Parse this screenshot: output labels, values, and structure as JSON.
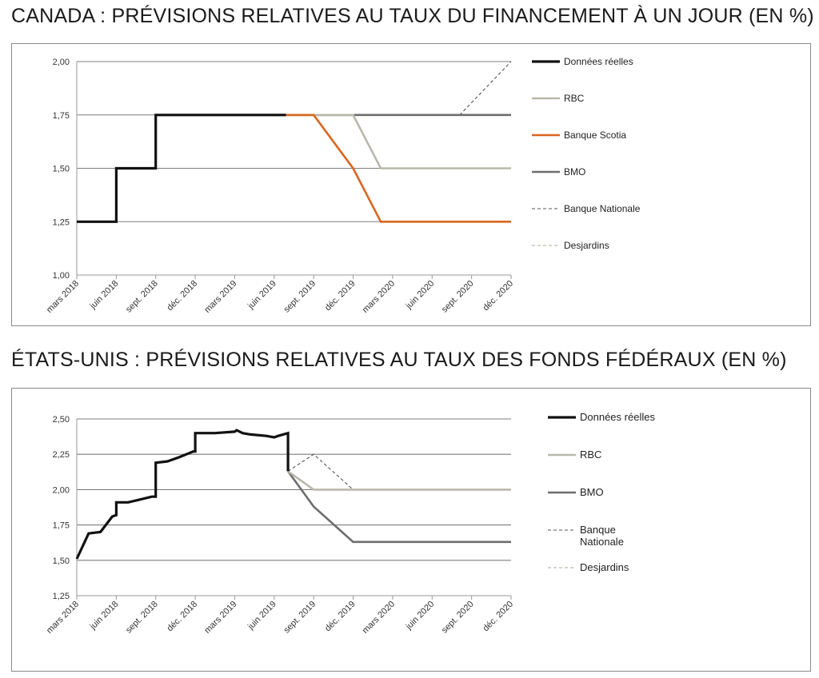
{
  "charts": [
    {
      "title": "CANADA : PRÉVISIONS RELATIVES AU TAUX DU FINANCEMENT À UN JOUR (EN %)"
    },
    {
      "title": "ÉTATS-UNIS : PRÉVISIONS RELATIVES AU TAUX DES FONDS FÉDÉRAUX (EN %)"
    }
  ],
  "colors": {
    "actual": "#111111",
    "rbc": "#b9b8ab",
    "scotia": "#d9661f",
    "bmo": "#6d6c6e",
    "nationale": "#555555",
    "desjardins": "#a8a89a",
    "grid": "#7d7d7d"
  },
  "chart_data": [
    {
      "type": "line",
      "title": "CANADA : PRÉVISIONS RELATIVES AU TAUX DU FINANCEMENT À UN JOUR (EN %)",
      "x_tick_labels": [
        "mars 2018",
        "juin 2018",
        "sept. 2018",
        "déc. 2018",
        "mars 2019",
        "juin 2019",
        "sept. 2019",
        "déc. 2019",
        "mars 2020",
        "juin 2020",
        "sept. 2020",
        "déc. 2020"
      ],
      "ylim": [
        1.0,
        2.0
      ],
      "y_ticks": [
        "1,00",
        "1,25",
        "1,50",
        "1,75",
        "2,00"
      ],
      "y_tick_values": [
        1.0,
        1.25,
        1.5,
        1.75,
        2.0
      ],
      "grid": true,
      "legend_position": "right",
      "legend": [
        {
          "name": "Données réelles",
          "key": "actual",
          "style": "solid-thick"
        },
        {
          "name": "RBC",
          "key": "rbc",
          "style": "solid"
        },
        {
          "name": "Banque Scotia",
          "key": "scotia",
          "style": "solid"
        },
        {
          "name": "BMO",
          "key": "bmo",
          "style": "solid"
        },
        {
          "name": "Banque Nationale",
          "key": "nationale",
          "style": "dashed"
        },
        {
          "name": "Desjardins",
          "key": "desjardins",
          "style": "dashed"
        }
      ],
      "series": [
        {
          "name": "Données réelles",
          "key": "actual",
          "points": [
            [
              0,
              1.25
            ],
            [
              1,
              1.25
            ],
            [
              1,
              1.5
            ],
            [
              2,
              1.5
            ],
            [
              2,
              1.75
            ],
            [
              5.3,
              1.75
            ]
          ]
        },
        {
          "name": "RBC",
          "key": "rbc",
          "points": [
            [
              5.3,
              1.75
            ],
            [
              7,
              1.75
            ],
            [
              7.7,
              1.5
            ],
            [
              11,
              1.5
            ]
          ]
        },
        {
          "name": "Banque Scotia",
          "key": "scotia",
          "points": [
            [
              5.3,
              1.75
            ],
            [
              6,
              1.75
            ],
            [
              7,
              1.5
            ],
            [
              7.7,
              1.25
            ],
            [
              11,
              1.25
            ]
          ]
        },
        {
          "name": "BMO",
          "key": "bmo",
          "points": [
            [
              5.3,
              1.75
            ],
            [
              11,
              1.75
            ]
          ]
        },
        {
          "name": "Banque Nationale",
          "key": "nationale",
          "points": [
            [
              5.3,
              1.75
            ],
            [
              9.7,
              1.75
            ],
            [
              11,
              2.0
            ]
          ]
        },
        {
          "name": "Desjardins",
          "key": "desjardins",
          "points": [
            [
              5.3,
              1.75
            ],
            [
              11,
              1.75
            ]
          ]
        }
      ]
    },
    {
      "type": "line",
      "title": "ÉTATS-UNIS : PRÉVISIONS RELATIVES AU TAUX DES FONDS FÉDÉRAUX (EN %)",
      "x_tick_labels": [
        "mars 2018",
        "juin 2018",
        "sept. 2018",
        "déc. 2018",
        "mars 2019",
        "juin 2019",
        "sept. 2019",
        "déc. 2019",
        "mars 2020",
        "juin 2020",
        "sept. 2020",
        "déc. 2020"
      ],
      "ylim": [
        1.25,
        2.5
      ],
      "y_ticks": [
        "1,25",
        "1,50",
        "1,75",
        "2,00",
        "2,25",
        "2,50"
      ],
      "y_tick_values": [
        1.25,
        1.5,
        1.75,
        2.0,
        2.25,
        2.5
      ],
      "grid": true,
      "legend_position": "right",
      "legend": [
        {
          "name": "Données réelles",
          "key": "actual",
          "style": "solid-thick"
        },
        {
          "name": "RBC",
          "key": "rbc",
          "style": "solid"
        },
        {
          "name": "BMO",
          "key": "bmo",
          "style": "solid"
        },
        {
          "name": "Banque\nNationale",
          "key": "nationale",
          "style": "dashed"
        },
        {
          "name": "Desjardins",
          "key": "desjardins",
          "style": "dashed"
        }
      ],
      "series": [
        {
          "name": "Données réelles",
          "key": "actual",
          "points": [
            [
              0,
              1.51
            ],
            [
              0.3,
              1.69
            ],
            [
              0.6,
              1.7
            ],
            [
              0.9,
              1.81
            ],
            [
              1,
              1.82
            ],
            [
              1,
              1.91
            ],
            [
              1.3,
              1.91
            ],
            [
              1.6,
              1.93
            ],
            [
              1.9,
              1.95
            ],
            [
              2,
              1.95
            ],
            [
              2,
              2.19
            ],
            [
              2.3,
              2.2
            ],
            [
              2.6,
              2.23
            ],
            [
              2.95,
              2.27
            ],
            [
              3,
              2.27
            ],
            [
              3,
              2.4
            ],
            [
              3.5,
              2.4
            ],
            [
              4,
              2.41
            ],
            [
              4.05,
              2.42
            ],
            [
              4.2,
              2.4
            ],
            [
              4.4,
              2.39
            ],
            [
              4.8,
              2.38
            ],
            [
              5.0,
              2.37
            ],
            [
              5.1,
              2.38
            ],
            [
              5.35,
              2.4
            ],
            [
              5.35,
              2.13
            ]
          ]
        },
        {
          "name": "RBC",
          "key": "rbc",
          "points": [
            [
              5.35,
              2.13
            ],
            [
              6,
              2.0
            ],
            [
              11,
              2.0
            ]
          ]
        },
        {
          "name": "BMO",
          "key": "bmo",
          "points": [
            [
              5.35,
              2.13
            ],
            [
              6,
              1.88
            ],
            [
              7,
              1.63
            ],
            [
              11,
              1.63
            ]
          ]
        },
        {
          "name": "Banque Nationale",
          "key": "nationale",
          "points": [
            [
              5.35,
              2.13
            ],
            [
              6,
              2.25
            ],
            [
              7,
              2.0
            ],
            [
              11,
              2.0
            ]
          ]
        },
        {
          "name": "Desjardins",
          "key": "desjardins",
          "points": [
            [
              5.35,
              2.13
            ],
            [
              6,
              2.0
            ],
            [
              11,
              2.0
            ]
          ]
        }
      ]
    }
  ]
}
